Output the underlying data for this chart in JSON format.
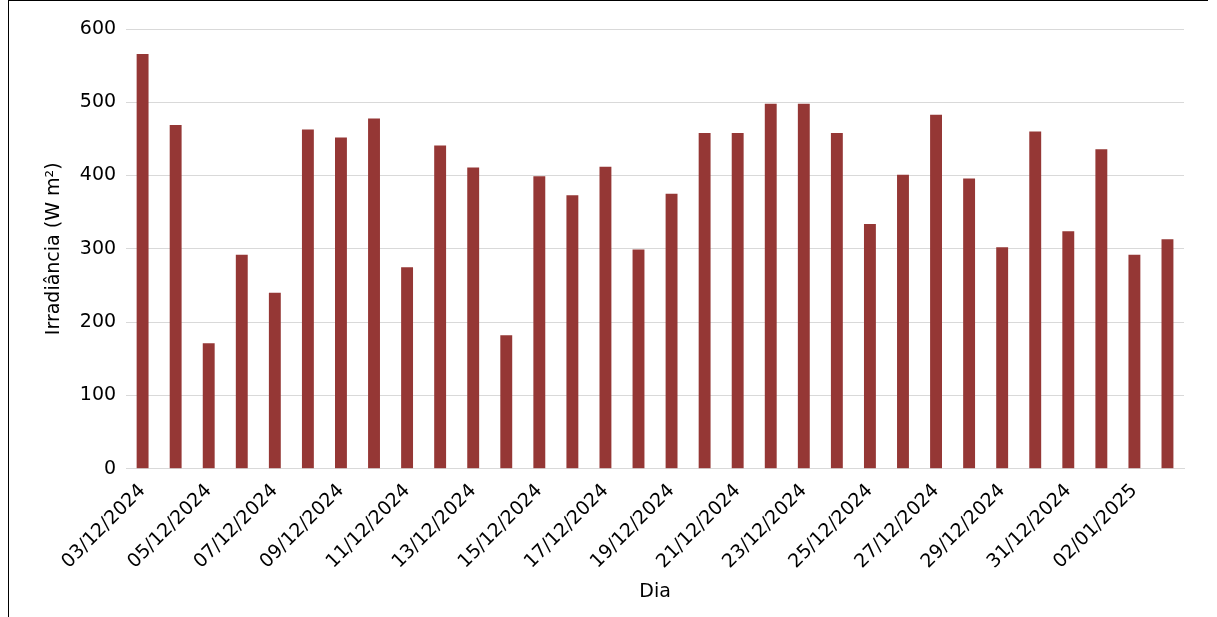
{
  "chart_data": {
    "type": "bar",
    "xlabel": "Dia",
    "ylabel": "Irradiância (W m²)",
    "categories": [
      "03/12/2024",
      null,
      "05/12/2024",
      null,
      "07/12/2024",
      null,
      "09/12/2024",
      null,
      "11/12/2024",
      null,
      "13/12/2024",
      null,
      "15/12/2024",
      null,
      "17/12/2024",
      null,
      "19/12/2024",
      null,
      "21/12/2024",
      null,
      "23/12/2024",
      null,
      "25/12/2024",
      null,
      "27/12/2024",
      null,
      "29/12/2024",
      null,
      "31/12/2024",
      null,
      "02/01/2025",
      null
    ],
    "values": [
      566,
      469,
      171,
      292,
      240,
      463,
      452,
      478,
      275,
      441,
      411,
      182,
      399,
      373,
      412,
      299,
      375,
      458,
      458,
      498,
      498,
      458,
      334,
      401,
      483,
      396,
      302,
      460,
      324,
      436,
      292,
      313
    ],
    "color": "#953735",
    "ylim": [
      0,
      600
    ],
    "yticks": [
      0,
      100,
      200,
      300,
      400,
      500,
      600
    ],
    "grid": "y",
    "legend": false
  }
}
